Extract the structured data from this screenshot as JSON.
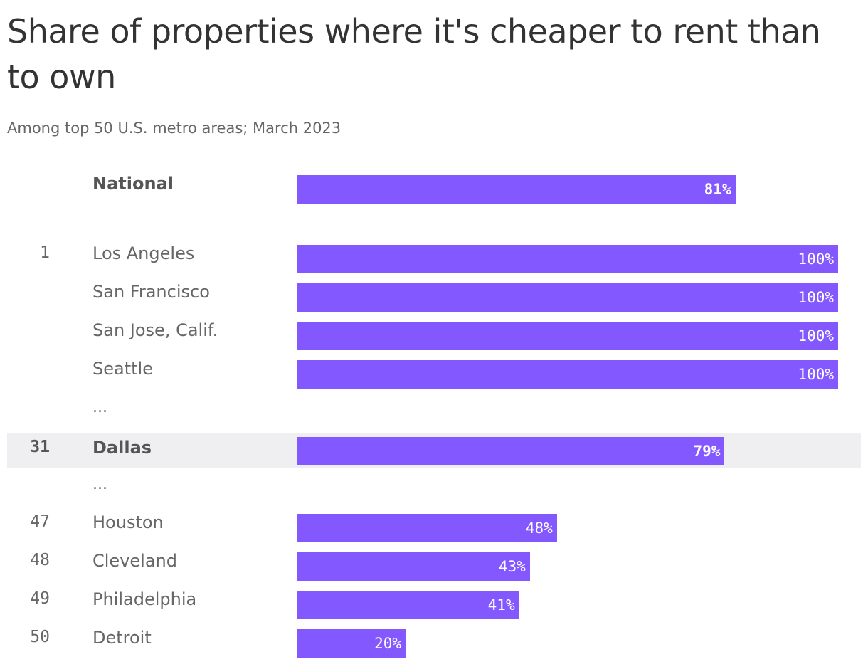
{
  "title": "Share of properties where it's cheaper to rent than to own",
  "subtitle": "Among top 50 U.S. metro areas; March 2023",
  "colors": {
    "bar": "#8359ff",
    "highlight": "#efeff1"
  },
  "chart_data": {
    "type": "bar",
    "orientation": "horizontal",
    "title": "Share of properties where it's cheaper to rent than to own",
    "subtitle": "Among top 50 U.S. metro areas; March 2023",
    "xlim": [
      0,
      100
    ],
    "unit": "%",
    "ellipsis": "...",
    "rows": [
      {
        "rank": "",
        "name": "National",
        "value": 81,
        "label": "81%",
        "emphasis": true,
        "highlight": false
      },
      {
        "rank": "1",
        "name": "Los Angeles",
        "value": 100,
        "label": "100%",
        "emphasis": false,
        "highlight": false
      },
      {
        "rank": "",
        "name": "San Francisco",
        "value": 100,
        "label": "100%",
        "emphasis": false,
        "highlight": false
      },
      {
        "rank": "",
        "name": "San Jose, Calif.",
        "value": 100,
        "label": "100%",
        "emphasis": false,
        "highlight": false
      },
      {
        "rank": "",
        "name": "Seattle",
        "value": 100,
        "label": "100%",
        "emphasis": false,
        "highlight": false
      },
      {
        "rank": "31",
        "name": "Dallas",
        "value": 79,
        "label": "79%",
        "emphasis": true,
        "highlight": true
      },
      {
        "rank": "47",
        "name": "Houston",
        "value": 48,
        "label": "48%",
        "emphasis": false,
        "highlight": false
      },
      {
        "rank": "48",
        "name": "Cleveland",
        "value": 43,
        "label": "43%",
        "emphasis": false,
        "highlight": false
      },
      {
        "rank": "49",
        "name": "Philadelphia",
        "value": 41,
        "label": "41%",
        "emphasis": false,
        "highlight": false
      },
      {
        "rank": "50",
        "name": "Detroit",
        "value": 20,
        "label": "20%",
        "emphasis": false,
        "highlight": false
      }
    ]
  }
}
